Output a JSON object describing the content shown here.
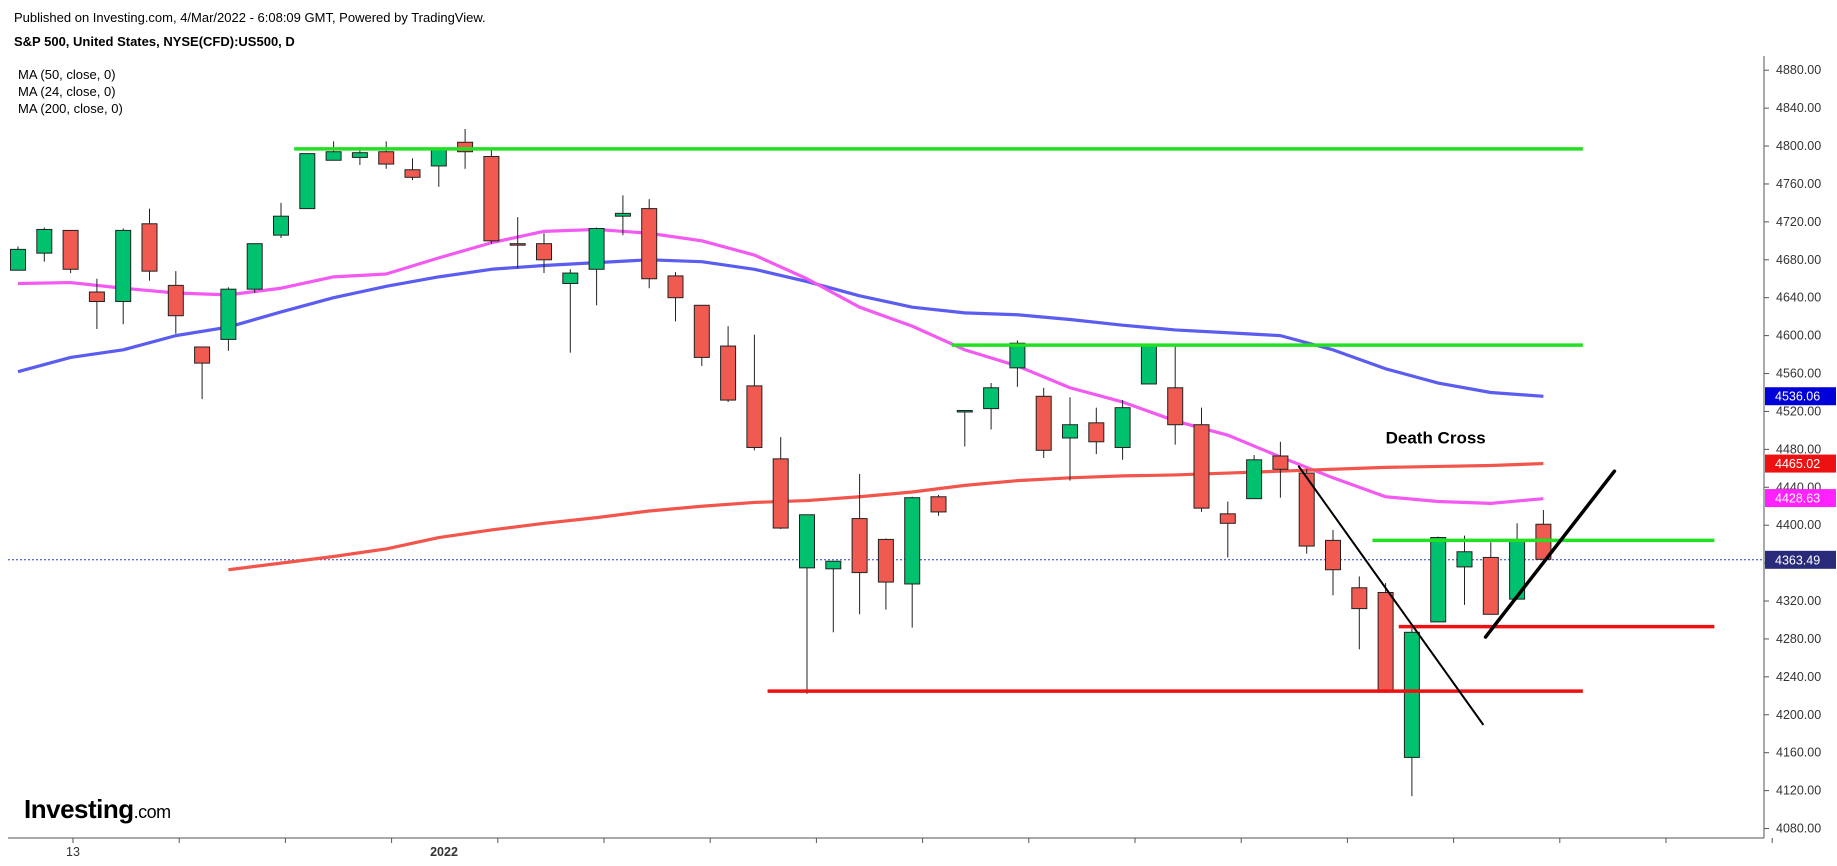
{
  "header": {
    "published": "Published on Investing.com, 4/Mar/2022 - 6:08:09 GMT, Powered by TradingView.",
    "symbol": "S&P 500, United States, NYSE(CFD):US500, D"
  },
  "ma_legend": [
    "MA (50, close, 0)",
    "MA (24, close, 0)",
    "MA (200, close, 0)"
  ],
  "logo": {
    "main": "Investing",
    "suffix": ".com"
  },
  "colors": {
    "up": "#00c16e",
    "down": "#f05a50",
    "ma50": "#5b5cf0",
    "ma24": "#f25af2",
    "ma200": "#f2554c",
    "support_green": "#22e022",
    "support_red": "#ee1111",
    "last_price_line": "#2040c0"
  },
  "chart_data": {
    "type": "candlestick",
    "y_axis": {
      "range": [
        4070,
        4895
      ],
      "ticks": [
        "4080.00",
        "4120.00",
        "4160.00",
        "4200.00",
        "4240.00",
        "4280.00",
        "4320.00",
        "4360.00",
        "4400.00",
        "4440.00",
        "4480.00",
        "4520.00",
        "4560.00",
        "4600.00",
        "4640.00",
        "4680.00",
        "4720.00",
        "4760.00",
        "4800.00",
        "4840.00",
        "4880.00"
      ]
    },
    "x_axis": {
      "labels": [
        {
          "text": "13",
          "index": 2
        },
        {
          "text": "2022",
          "index": 16
        }
      ]
    },
    "candles": [
      [
        4669,
        4694,
        4669,
        4691
      ],
      [
        4687,
        4714,
        4678,
        4712
      ],
      [
        4711,
        4711,
        4666,
        4670
      ],
      [
        4646,
        4660,
        4607,
        4636
      ],
      [
        4636,
        4713,
        4612,
        4711
      ],
      [
        4718,
        4734,
        4658,
        4668
      ],
      [
        4653,
        4668,
        4602,
        4621
      ],
      [
        4588,
        4588,
        4533,
        4571
      ],
      [
        4596,
        4651,
        4584,
        4649
      ],
      [
        4649,
        4697,
        4645,
        4697
      ],
      [
        4706,
        4740,
        4703,
        4726
      ],
      [
        4734,
        4792,
        4734,
        4792
      ],
      [
        4785,
        4805,
        4785,
        4794
      ],
      [
        4788,
        4799,
        4780,
        4793
      ],
      [
        4794,
        4805,
        4776,
        4781
      ],
      [
        4775,
        4787,
        4764,
        4767
      ],
      [
        4779,
        4796,
        4757,
        4796
      ],
      [
        4804,
        4818,
        4776,
        4794
      ],
      [
        4789,
        4797,
        4697,
        4700
      ],
      [
        4697,
        4725,
        4671,
        4696
      ],
      [
        4697,
        4708,
        4666,
        4680
      ],
      [
        4655,
        4670,
        4582,
        4666
      ],
      [
        4670,
        4714,
        4632,
        4713
      ],
      [
        4726,
        4748,
        4706,
        4729
      ],
      [
        4734,
        4744,
        4650,
        4660
      ],
      [
        4663,
        4667,
        4615,
        4640
      ],
      [
        4632,
        4632,
        4568,
        4577
      ],
      [
        4589,
        4610,
        4530,
        4532
      ],
      [
        4547,
        4601,
        4479,
        4482
      ],
      [
        4470,
        4493,
        4396,
        4397
      ],
      [
        4355,
        4411,
        4222,
        4411
      ],
      [
        4354,
        4354,
        4287,
        4362
      ],
      [
        4407,
        4454,
        4306,
        4350
      ],
      [
        4385,
        4386,
        4311,
        4340
      ],
      [
        4338,
        4430,
        4292,
        4429
      ],
      [
        4430,
        4432,
        4410,
        4414
      ],
      [
        4521,
        4521,
        4483,
        4521
      ],
      [
        4523,
        4550,
        4501,
        4545
      ],
      [
        4566,
        4595,
        4546,
        4592
      ],
      [
        4536,
        4545,
        4471,
        4479
      ],
      [
        4492,
        4535,
        4447,
        4506
      ],
      [
        4508,
        4524,
        4475,
        4488
      ],
      [
        4482,
        4532,
        4469,
        4524
      ],
      [
        4549,
        4589,
        4549,
        4589
      ],
      [
        4545,
        4590,
        4485,
        4506
      ],
      [
        4506,
        4524,
        4414,
        4418
      ],
      [
        4412,
        4425,
        4366,
        4402
      ],
      [
        4428,
        4474,
        4428,
        4469
      ],
      [
        4473,
        4488,
        4429,
        4459
      ],
      [
        4455,
        4459,
        4370,
        4378
      ],
      [
        4384,
        4395,
        4326,
        4353
      ],
      [
        4334,
        4346,
        4269,
        4312
      ],
      [
        4329,
        4339,
        4223,
        4224
      ],
      [
        4155,
        4295,
        4114,
        4287
      ],
      [
        4298,
        4388,
        4298,
        4387
      ],
      [
        4356,
        4389,
        4316,
        4372
      ],
      [
        4366,
        4382,
        4308,
        4306
      ],
      [
        4322,
        4402,
        4324,
        4384
      ],
      [
        4401,
        4416,
        4359,
        4364
      ]
    ],
    "series": [
      {
        "name": "MA (50, close, 0)",
        "values": [
          [
            0,
            4562
          ],
          [
            2,
            4577
          ],
          [
            4,
            4585
          ],
          [
            6,
            4600
          ],
          [
            8,
            4609
          ],
          [
            10,
            4625
          ],
          [
            12,
            4640
          ],
          [
            14,
            4652
          ],
          [
            16,
            4662
          ],
          [
            18,
            4670
          ],
          [
            20,
            4674
          ],
          [
            22,
            4677
          ],
          [
            24,
            4680
          ],
          [
            26,
            4678
          ],
          [
            28,
            4670
          ],
          [
            30,
            4657
          ],
          [
            32,
            4642
          ],
          [
            34,
            4630
          ],
          [
            36,
            4624
          ],
          [
            38,
            4622
          ],
          [
            40,
            4617
          ],
          [
            42,
            4611
          ],
          [
            44,
            4606
          ],
          [
            46,
            4603
          ],
          [
            48,
            4600
          ],
          [
            50,
            4585
          ],
          [
            52,
            4565
          ],
          [
            54,
            4550
          ],
          [
            56,
            4540
          ],
          [
            58,
            4536
          ]
        ]
      },
      {
        "name": "MA (24, close, 0)",
        "values": [
          [
            0,
            4655
          ],
          [
            2,
            4656
          ],
          [
            4,
            4650
          ],
          [
            6,
            4645
          ],
          [
            8,
            4643
          ],
          [
            10,
            4650
          ],
          [
            12,
            4662
          ],
          [
            14,
            4665
          ],
          [
            16,
            4682
          ],
          [
            18,
            4698
          ],
          [
            20,
            4710
          ],
          [
            22,
            4712
          ],
          [
            24,
            4708
          ],
          [
            26,
            4700
          ],
          [
            28,
            4685
          ],
          [
            30,
            4660
          ],
          [
            32,
            4630
          ],
          [
            34,
            4610
          ],
          [
            36,
            4585
          ],
          [
            38,
            4568
          ],
          [
            40,
            4545
          ],
          [
            42,
            4530
          ],
          [
            44,
            4510
          ],
          [
            46,
            4495
          ],
          [
            48,
            4472
          ],
          [
            50,
            4450
          ],
          [
            52,
            4430
          ],
          [
            54,
            4425
          ],
          [
            56,
            4423
          ],
          [
            58,
            4428
          ]
        ]
      },
      {
        "name": "MA (200, close, 0)",
        "values": [
          [
            8,
            4353
          ],
          [
            10,
            4360
          ],
          [
            12,
            4367
          ],
          [
            14,
            4375
          ],
          [
            16,
            4387
          ],
          [
            18,
            4395
          ],
          [
            20,
            4402
          ],
          [
            22,
            4408
          ],
          [
            24,
            4415
          ],
          [
            26,
            4420
          ],
          [
            28,
            4424
          ],
          [
            30,
            4426
          ],
          [
            32,
            4430
          ],
          [
            34,
            4435
          ],
          [
            36,
            4442
          ],
          [
            38,
            4447
          ],
          [
            40,
            4450
          ],
          [
            42,
            4452
          ],
          [
            44,
            4453
          ],
          [
            46,
            4455
          ],
          [
            48,
            4457
          ],
          [
            50,
            4459
          ],
          [
            52,
            4461
          ],
          [
            54,
            4462
          ],
          [
            56,
            4463
          ],
          [
            58,
            4465
          ]
        ]
      }
    ],
    "price_labels": [
      {
        "value": 4536.06,
        "text": "4536.06",
        "color": "#0000d8"
      },
      {
        "value": 4465.02,
        "text": "4465.02",
        "color": "#ee1111"
      },
      {
        "value": 4428.63,
        "text": "4428.63",
        "color": "#ff22ff"
      },
      {
        "value": 4363.49,
        "text": "4363.49",
        "color": "#2a2a7a"
      }
    ],
    "horizontal_lines": [
      {
        "value": 4797,
        "from_index": 10.5,
        "to_index": 59.5,
        "color": "#22e022"
      },
      {
        "value": 4590,
        "from_index": 35.5,
        "to_index": 59.5,
        "color": "#22e022"
      },
      {
        "value": 4384,
        "from_index": 51.5,
        "to_index": 64.5,
        "color": "#22e022"
      },
      {
        "value": 4293,
        "from_index": 52.5,
        "to_index": 64.5,
        "color": "#ee1111"
      },
      {
        "value": 4225,
        "from_index": 28.5,
        "to_index": 59.5,
        "color": "#ee1111"
      }
    ],
    "trendlines": [
      {
        "from": [
          48.7,
          4462
        ],
        "to": [
          55.7,
          4190
        ],
        "width": 2
      },
      {
        "from": [
          55.8,
          4282
        ],
        "to": [
          60.7,
          4457
        ],
        "width": 3.5
      }
    ],
    "annotations": [
      {
        "text": "Death Cross",
        "index": 52,
        "value": 4486
      }
    ]
  }
}
